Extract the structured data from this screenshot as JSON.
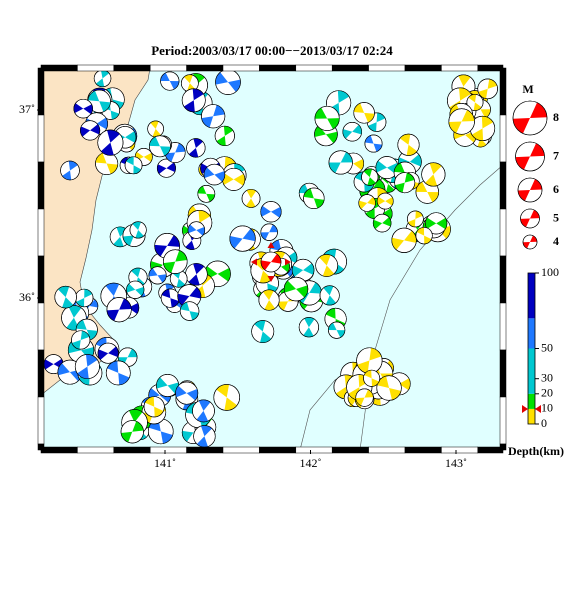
{
  "title": "Period:2003/03/17 00:00−−2013/03/17 02:24",
  "map": {
    "lon_ticks": [
      {
        "value": 141,
        "label": "141˚"
      },
      {
        "value": 142,
        "label": "142˚"
      },
      {
        "value": 143,
        "label": "143˚"
      }
    ],
    "lat_ticks": [
      {
        "value": 37,
        "label": "37˚"
      },
      {
        "value": 36,
        "label": "36˚"
      }
    ]
  },
  "magnitude_legend": {
    "title": "M",
    "magnitudes": [
      8,
      7,
      6,
      5,
      4
    ]
  },
  "depth_colorbar": {
    "label": "Depth(km)",
    "ticks": [
      100,
      50,
      30,
      20,
      10,
      0
    ]
  }
}
